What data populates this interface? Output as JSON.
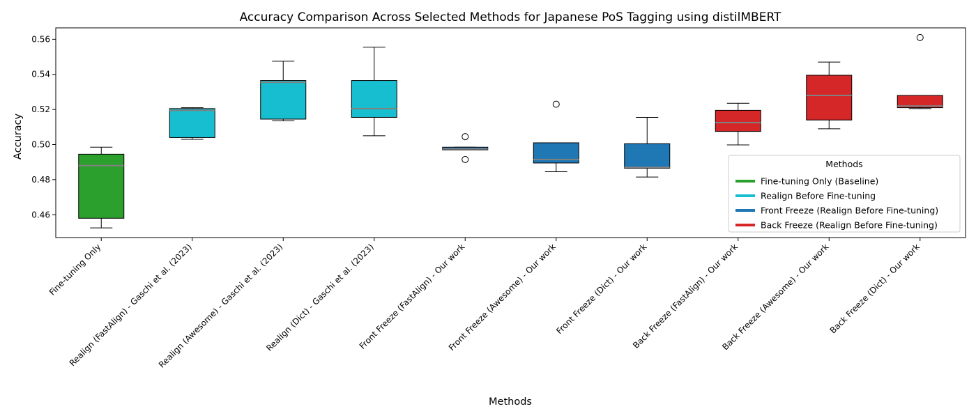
{
  "chart_data": {
    "type": "box",
    "title": "Accuracy Comparison Across Selected Methods for Japanese PoS Tagging using distilMBERT",
    "xlabel": "Methods",
    "ylabel": "Accuracy",
    "ylim": [
      0.447,
      0.5665
    ],
    "yticks": [
      0.46,
      0.48,
      0.5,
      0.52,
      0.54,
      0.56
    ],
    "ytick_labels": [
      "0.46",
      "0.48",
      "0.50",
      "0.52",
      "0.54",
      "0.56"
    ],
    "median_color": "#808080",
    "grid": false,
    "legend": {
      "title": "Methods",
      "position": "lower-right",
      "entries": [
        {
          "label": "Fine-tuning Only (Baseline)",
          "color": "#2ca02c"
        },
        {
          "label": "Realign Before Fine-tuning",
          "color": "#17becf"
        },
        {
          "label": "Front Freeze (Realign Before Fine-tuning)",
          "color": "#1f77b4"
        },
        {
          "label": "Back Freeze (Realign Before Fine-tuning)",
          "color": "#d62728"
        }
      ]
    },
    "categories": [
      "Fine-tuning Only",
      "Realign (FastAlign) - Gaschi et al. (2023)",
      "Realign (Awesome) - Gaschi et al. (2023)",
      "Realign (Dict) - Gaschi et al. (2023)",
      "Front Freeze (FastAlign) - Our work",
      "Front Freeze (Awesome) - Our work",
      "Front Freeze (Dict) - Our work",
      "Back Freeze (FastAlign) - Our work",
      "Back Freeze (Awesome) - Our work",
      "Back Freeze (Dict) - Our work"
    ],
    "boxes": [
      {
        "whislo": 0.4525,
        "q1": 0.458,
        "med": 0.488,
        "q3": 0.4945,
        "whishi": 0.4985,
        "fliers": [],
        "color": "#2ca02c"
      },
      {
        "whislo": 0.503,
        "q1": 0.504,
        "med": 0.5195,
        "q3": 0.5205,
        "whishi": 0.521,
        "fliers": [],
        "color": "#17becf"
      },
      {
        "whislo": 0.5135,
        "q1": 0.5145,
        "med": 0.5355,
        "q3": 0.5365,
        "whishi": 0.5475,
        "fliers": [],
        "color": "#17becf"
      },
      {
        "whislo": 0.505,
        "q1": 0.5155,
        "med": 0.5205,
        "q3": 0.5365,
        "whishi": 0.5555,
        "fliers": [],
        "color": "#17becf"
      },
      {
        "whislo": 0.497,
        "q1": 0.497,
        "med": 0.4975,
        "q3": 0.4985,
        "whishi": 0.4985,
        "fliers": [
          0.5045,
          0.4915
        ],
        "color": "#1f77b4"
      },
      {
        "whislo": 0.4845,
        "q1": 0.4895,
        "med": 0.4915,
        "q3": 0.501,
        "whishi": 0.501,
        "fliers": [
          0.523
        ],
        "color": "#1f77b4"
      },
      {
        "whislo": 0.4815,
        "q1": 0.4865,
        "med": 0.487,
        "q3": 0.5005,
        "whishi": 0.5155,
        "fliers": [],
        "color": "#1f77b4"
      },
      {
        "whislo": 0.4998,
        "q1": 0.5075,
        "med": 0.5125,
        "q3": 0.5195,
        "whishi": 0.5235,
        "fliers": [],
        "color": "#d62728"
      },
      {
        "whislo": 0.509,
        "q1": 0.514,
        "med": 0.528,
        "q3": 0.5395,
        "whishi": 0.547,
        "fliers": [],
        "color": "#d62728"
      },
      {
        "whislo": 0.5205,
        "q1": 0.521,
        "med": 0.522,
        "q3": 0.528,
        "whishi": 0.528,
        "fliers": [
          0.561
        ],
        "color": "#d62728"
      }
    ]
  }
}
